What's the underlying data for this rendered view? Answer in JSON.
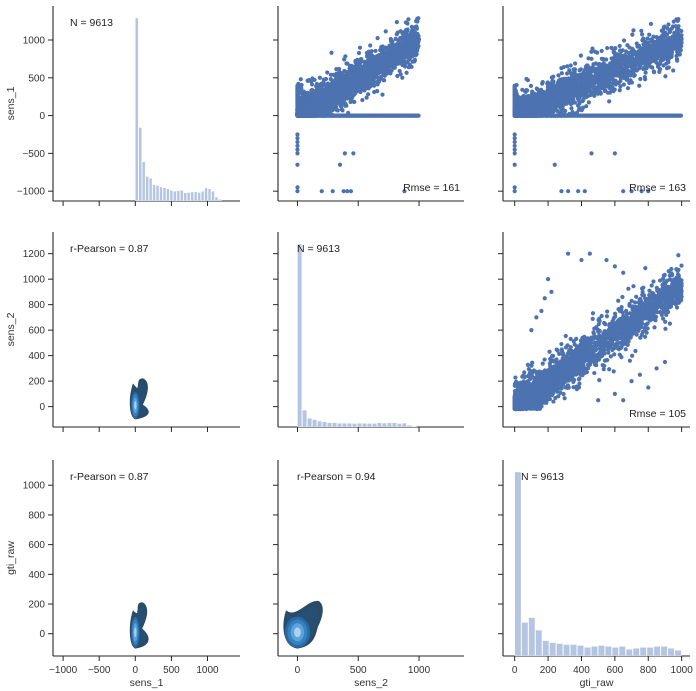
{
  "chart_data": {
    "type": "pairgrid",
    "title": "",
    "variables": [
      "sens_1",
      "sens_2",
      "gti_raw"
    ],
    "colors": {
      "scatter": "#4c72b0",
      "hist": "#b4c5e2",
      "kde_dark": "#2b4a66",
      "kde_mid": "#2f78b8",
      "kde_light": "#a9d3f0",
      "axis": "#262626",
      "text": "#333333"
    },
    "axes_ranges": {
      "sens_1": {
        "xlim": [
          -1140,
          1450
        ],
        "ylim": [
          -1130,
          1450
        ],
        "ticks": [
          -1000,
          -500,
          0,
          500,
          1000
        ]
      },
      "sens_2": {
        "xlim": [
          -160,
          1370
        ],
        "ylim": [
          -160,
          1370
        ],
        "ticks_x": [
          0,
          500,
          1000
        ],
        "ticks_y": [
          0,
          200,
          400,
          600,
          800,
          1000,
          1200
        ]
      },
      "gti_raw": {
        "xlim": [
          -70,
          1050
        ],
        "ylim": [
          -150,
          1170
        ],
        "ticks_x": [
          0,
          200,
          400,
          600,
          800,
          1000
        ],
        "ticks_y": [
          0,
          200,
          400,
          600,
          800,
          1000
        ]
      }
    },
    "panels": [
      {
        "row": 0,
        "col": 0,
        "kind": "hist",
        "variable": "sens_1",
        "annotation": "N = 9613",
        "bin_start": 0,
        "bin_width": 48,
        "counts": [
          1120,
          450,
          240,
          150,
          140,
          100,
          95,
          85,
          82,
          75,
          65,
          60,
          62,
          65,
          50,
          52,
          55,
          55,
          52,
          60,
          80,
          75,
          60,
          25,
          10
        ]
      },
      {
        "row": 0,
        "col": 1,
        "kind": "scatter",
        "x": "sens_2",
        "y": "sens_1",
        "annotation": "Rmse = 161",
        "trend": {
          "slope": 1.0,
          "intercept": 0,
          "spread": 170
        },
        "zero_line_x_range": [
          0,
          1000
        ],
        "outliers": [
          [
            0,
            -250
          ],
          [
            0,
            -300
          ],
          [
            0,
            -350
          ],
          [
            0,
            -400
          ],
          [
            0,
            -450
          ],
          [
            0,
            -500
          ],
          [
            0,
            -650
          ],
          [
            0,
            -950
          ],
          [
            0,
            -1000
          ],
          [
            350,
            -650
          ],
          [
            390,
            -500
          ],
          [
            460,
            -500
          ],
          [
            200,
            -1000
          ],
          [
            290,
            -1000
          ],
          [
            380,
            -1000
          ],
          [
            410,
            -1000
          ],
          [
            440,
            -1000
          ],
          [
            880,
            -1000
          ]
        ]
      },
      {
        "row": 0,
        "col": 2,
        "kind": "scatter",
        "x": "gti_raw",
        "y": "sens_1",
        "annotation": "Rmse = 163",
        "trend": {
          "slope": 1.0,
          "intercept": 0,
          "spread": 170
        },
        "zero_line_x_range": [
          0,
          1000
        ],
        "outliers": [
          [
            0,
            -250
          ],
          [
            0,
            -300
          ],
          [
            0,
            -350
          ],
          [
            0,
            -400
          ],
          [
            0,
            -450
          ],
          [
            0,
            -500
          ],
          [
            0,
            -650
          ],
          [
            0,
            -950
          ],
          [
            0,
            -1000
          ],
          [
            240,
            -650
          ],
          [
            460,
            -500
          ],
          [
            600,
            -500
          ],
          [
            280,
            -1000
          ],
          [
            320,
            -1000
          ],
          [
            380,
            -1000
          ],
          [
            420,
            -1000
          ],
          [
            650,
            -1000
          ],
          [
            700,
            -1000
          ],
          [
            760,
            -1000
          ],
          [
            800,
            -1000
          ]
        ]
      },
      {
        "row": 1,
        "col": 0,
        "kind": "kde",
        "x": "sens_1",
        "y": "sens_2",
        "annotation": "r-Pearson = 0.87",
        "center": [
          0,
          10
        ],
        "extent_x": [
          -60,
          160
        ],
        "extent_y": [
          -100,
          220
        ]
      },
      {
        "row": 1,
        "col": 1,
        "kind": "hist",
        "variable": "sens_2",
        "annotation": "N = 9613",
        "bin_start": 0,
        "bin_width": 41,
        "counts": [
          1300,
          120,
          62,
          53,
          42,
          37,
          30,
          30,
          27,
          27,
          26,
          25,
          27,
          26,
          25,
          25,
          30,
          28,
          30,
          30,
          25,
          28,
          12,
          5
        ]
      },
      {
        "row": 1,
        "col": 2,
        "kind": "scatter",
        "x": "gti_raw",
        "y": "sens_2",
        "annotation": "Rmse = 105",
        "trend": {
          "slope": 0.95,
          "intercept": 0,
          "spread": 110
        },
        "outliers": [
          [
            200,
            1000
          ],
          [
            180,
            850
          ],
          [
            320,
            1200
          ],
          [
            400,
            1150
          ],
          [
            450,
            1200
          ],
          [
            550,
            1150
          ],
          [
            600,
            1100
          ],
          [
            650,
            1050
          ],
          [
            100,
            600
          ],
          [
            130,
            700
          ],
          [
            160,
            750
          ],
          [
            220,
            900
          ],
          [
            700,
            200
          ],
          [
            750,
            250
          ],
          [
            800,
            150
          ],
          [
            850,
            300
          ],
          [
            900,
            350
          ],
          [
            600,
            100
          ],
          [
            650,
            50
          ],
          [
            500,
            50
          ]
        ]
      },
      {
        "row": 2,
        "col": 0,
        "kind": "kde",
        "x": "sens_1",
        "y": "gti_raw",
        "annotation": "r-Pearson = 0.87",
        "center": [
          0,
          10
        ],
        "extent_x": [
          -60,
          150
        ],
        "extent_y": [
          -100,
          210
        ]
      },
      {
        "row": 2,
        "col": 1,
        "kind": "kde",
        "x": "sens_2",
        "y": "gti_raw",
        "annotation": "r-Pearson = 0.94",
        "center": [
          0,
          10
        ],
        "extent_x": [
          -110,
          200
        ],
        "extent_y": [
          -100,
          220
        ]
      },
      {
        "row": 2,
        "col": 2,
        "kind": "hist",
        "variable": "gti_raw",
        "annotation": "N = 9613",
        "bin_start": 0,
        "bin_width": 41.7,
        "counts": [
          960,
          175,
          200,
          135,
          80,
          70,
          65,
          60,
          60,
          55,
          45,
          50,
          55,
          50,
          45,
          50,
          35,
          40,
          45,
          45,
          50,
          50,
          40,
          30
        ]
      }
    ],
    "xlabels": [
      "sens_1",
      "sens_2",
      "gti_raw"
    ],
    "ylabels": [
      "sens_1",
      "sens_2",
      "gti_raw"
    ],
    "legend": "none",
    "grid": false
  }
}
